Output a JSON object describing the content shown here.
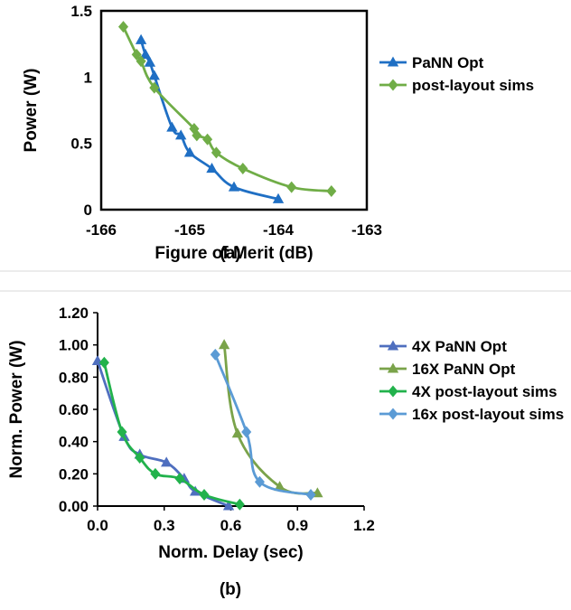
{
  "colors": {
    "blue": "#1f6fc4",
    "green": "#70ad47",
    "lightgreen": "#8fca5a",
    "darkblue": "#4f6fbf",
    "olive": "#7aa34a",
    "brightgreen": "#22b24c",
    "lightblue": "#5b9bd5",
    "divider": "#d9d9d9"
  },
  "chart_data": [
    {
      "type": "line",
      "caption": "(a)",
      "xlabel": "Figure of Merit (dB)",
      "ylabel": "Power (W)",
      "xlim": [
        -166,
        -163
      ],
      "ylim": [
        0,
        1.5
      ],
      "xticks": [
        -166,
        -165,
        -164,
        -163
      ],
      "xtick_labels": [
        "-166",
        "-165",
        "-164",
        "-163"
      ],
      "yticks": [
        0,
        0.5,
        1,
        1.5
      ],
      "ytick_labels": [
        "0",
        "0.5",
        "1",
        "1.5"
      ],
      "grid": false,
      "legend_position": "right",
      "series": [
        {
          "name": "PaNN Opt",
          "marker": "triangle",
          "color": "#1f6fc4",
          "points": [
            [
              -165.55,
              1.28
            ],
            [
              -165.5,
              1.17
            ],
            [
              -165.45,
              1.11
            ],
            [
              -165.4,
              1.01
            ],
            [
              -165.2,
              0.62
            ],
            [
              -165.1,
              0.56
            ],
            [
              -165.0,
              0.43
            ],
            [
              -164.75,
              0.31
            ],
            [
              -164.5,
              0.17
            ],
            [
              -164.0,
              0.08
            ]
          ]
        },
        {
          "name": "post-layout sims",
          "marker": "diamond",
          "color": "#70ad47",
          "points": [
            [
              -165.75,
              1.38
            ],
            [
              -165.6,
              1.17
            ],
            [
              -165.55,
              1.12
            ],
            [
              -165.4,
              0.92
            ],
            [
              -164.95,
              0.61
            ],
            [
              -164.92,
              0.56
            ],
            [
              -164.8,
              0.53
            ],
            [
              -164.7,
              0.43
            ],
            [
              -164.4,
              0.31
            ],
            [
              -163.85,
              0.17
            ],
            [
              -163.4,
              0.14
            ]
          ]
        }
      ]
    },
    {
      "type": "line",
      "caption": "(b)",
      "xlabel": "Norm. Delay (sec)",
      "ylabel": "Norm. Power (W)",
      "xlim": [
        0,
        1.2
      ],
      "ylim": [
        0,
        1.2
      ],
      "xticks": [
        0,
        0.3,
        0.6,
        0.9,
        1.2
      ],
      "xtick_labels": [
        "0.0",
        "0.3",
        "0.6",
        "0.9",
        "1.2"
      ],
      "yticks": [
        0,
        0.2,
        0.4,
        0.6,
        0.8,
        1.0,
        1.2
      ],
      "ytick_labels": [
        "0.00",
        "0.20",
        "0.40",
        "0.60",
        "0.80",
        "1.00",
        "1.20"
      ],
      "grid": false,
      "legend_position": "right",
      "series": [
        {
          "name": "4X PaNN Opt",
          "marker": "triangle",
          "color": "#4f6fbf",
          "points": [
            [
              0.0,
              0.9
            ],
            [
              0.12,
              0.43
            ],
            [
              0.19,
              0.32
            ],
            [
              0.31,
              0.27
            ],
            [
              0.39,
              0.17
            ],
            [
              0.44,
              0.09
            ],
            [
              0.59,
              0.0
            ]
          ]
        },
        {
          "name": "16X PaNN Opt",
          "marker": "triangle",
          "color": "#7aa34a",
          "points": [
            [
              0.57,
              1.0
            ],
            [
              0.63,
              0.45
            ],
            [
              0.82,
              0.12
            ],
            [
              0.99,
              0.08
            ]
          ]
        },
        {
          "name": "4X post-layout sims",
          "marker": "diamond",
          "color": "#22b24c",
          "points": [
            [
              0.03,
              0.89
            ],
            [
              0.11,
              0.46
            ],
            [
              0.19,
              0.3
            ],
            [
              0.26,
              0.2
            ],
            [
              0.37,
              0.17
            ],
            [
              0.48,
              0.07
            ],
            [
              0.64,
              0.01
            ]
          ]
        },
        {
          "name": "16x post-layout sims",
          "marker": "diamond",
          "color": "#5b9bd5",
          "points": [
            [
              0.53,
              0.94
            ],
            [
              0.67,
              0.46
            ],
            [
              0.73,
              0.15
            ],
            [
              0.96,
              0.07
            ]
          ]
        }
      ]
    }
  ]
}
